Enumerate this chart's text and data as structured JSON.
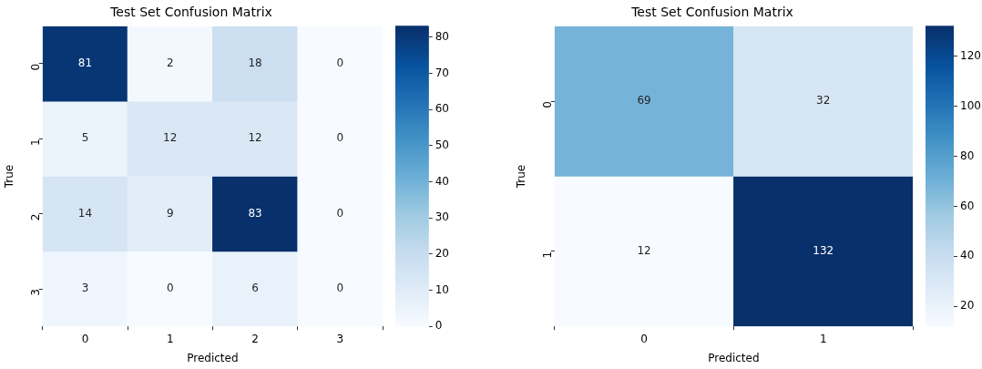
{
  "chart_data": [
    {
      "type": "heatmap",
      "title": "Test Set Confusion Matrix",
      "xlabel": "Predicted",
      "ylabel": "True",
      "categories": [
        "0",
        "1",
        "2",
        "3"
      ],
      "y_categories": [
        "0",
        "1",
        "2",
        "3"
      ],
      "cells": [
        [
          81,
          2,
          18,
          0
        ],
        [
          5,
          12,
          12,
          0
        ],
        [
          14,
          9,
          83,
          0
        ],
        [
          3,
          0,
          6,
          0
        ]
      ],
      "clim": [
        0,
        83
      ],
      "cticks": [
        0,
        10,
        20,
        30,
        40,
        50,
        60,
        70,
        80
      ],
      "data_labels": true
    },
    {
      "type": "heatmap",
      "title": "Test Set Confusion Matrix",
      "xlabel": "Predicted",
      "ylabel": "True",
      "categories": [
        "0",
        "1"
      ],
      "y_categories": [
        "0",
        "1"
      ],
      "cells": [
        [
          69,
          32
        ],
        [
          12,
          132
        ]
      ],
      "clim": [
        12,
        132
      ],
      "cticks": [
        20,
        40,
        60,
        80,
        100,
        120
      ],
      "data_labels": true
    }
  ]
}
